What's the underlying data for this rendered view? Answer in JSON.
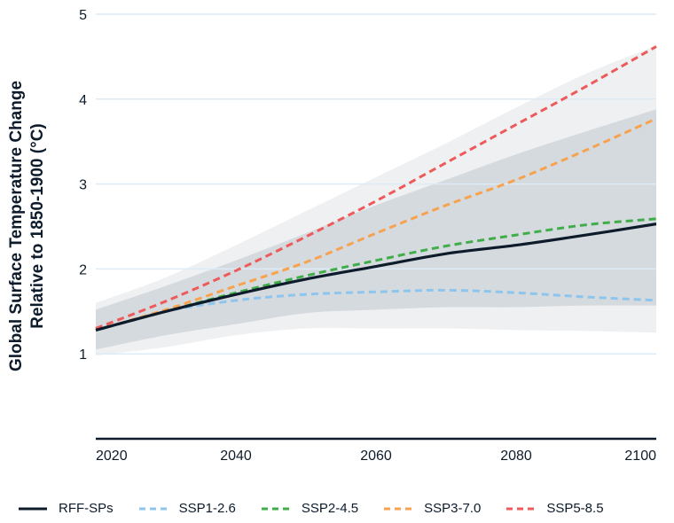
{
  "chart_data": {
    "type": "line",
    "title": "",
    "xlabel": "",
    "ylabel": "Global Surface Temperature Change Relative to 1850-1900 (°C)",
    "ylabel_lines": [
      "Global Surface Temperature Change",
      "Relative to 1850-1900 (°C)"
    ],
    "x": [
      2020,
      2030,
      2040,
      2050,
      2060,
      2070,
      2080,
      2090,
      2100
    ],
    "xlim": [
      2020,
      2100
    ],
    "ylim": [
      0,
      5
    ],
    "xticks": [
      "2020",
      "2040",
      "2060",
      "2080",
      "2100"
    ],
    "yticks": [
      "1",
      "2",
      "3",
      "4",
      "5"
    ],
    "grid": "horizontal",
    "legend_position": "bottom",
    "bands": [
      {
        "lower": [
          0.98,
          1.08,
          1.22,
          1.3,
          1.3,
          1.3,
          1.28,
          1.27,
          1.25
        ],
        "upper": [
          1.6,
          1.9,
          2.28,
          2.68,
          3.08,
          3.48,
          3.9,
          4.3,
          4.63
        ],
        "color": "#eef0f2"
      },
      {
        "lower": [
          1.05,
          1.22,
          1.35,
          1.48,
          1.52,
          1.55,
          1.55,
          1.57,
          1.57
        ],
        "upper": [
          1.52,
          1.8,
          2.1,
          2.42,
          2.75,
          3.05,
          3.35,
          3.62,
          3.88
        ],
        "color": "#d5dadf"
      }
    ],
    "series": [
      {
        "name": "RFF-SPs",
        "values": [
          1.28,
          1.5,
          1.7,
          1.88,
          2.03,
          2.18,
          2.28,
          2.4,
          2.53
        ],
        "color": "#0d1b2a",
        "dashed": false
      },
      {
        "name": "SSP1-2.6",
        "values": [
          1.28,
          1.5,
          1.63,
          1.7,
          1.73,
          1.75,
          1.72,
          1.67,
          1.63
        ],
        "color": "#8ec5ec",
        "dashed": true
      },
      {
        "name": "SSP2-4.5",
        "values": [
          1.28,
          1.5,
          1.72,
          1.92,
          2.1,
          2.27,
          2.4,
          2.52,
          2.59
        ],
        "color": "#3fae49",
        "dashed": true
      },
      {
        "name": "SSP3-7.0",
        "values": [
          1.28,
          1.52,
          1.8,
          2.08,
          2.42,
          2.75,
          3.05,
          3.4,
          3.77
        ],
        "color": "#f7a24f",
        "dashed": true
      },
      {
        "name": "SSP5-8.5",
        "values": [
          1.3,
          1.62,
          1.98,
          2.38,
          2.8,
          3.25,
          3.7,
          4.15,
          4.62
        ],
        "color": "#ee5a5a",
        "dashed": true
      }
    ],
    "gridline_color": "#dcebf6"
  }
}
